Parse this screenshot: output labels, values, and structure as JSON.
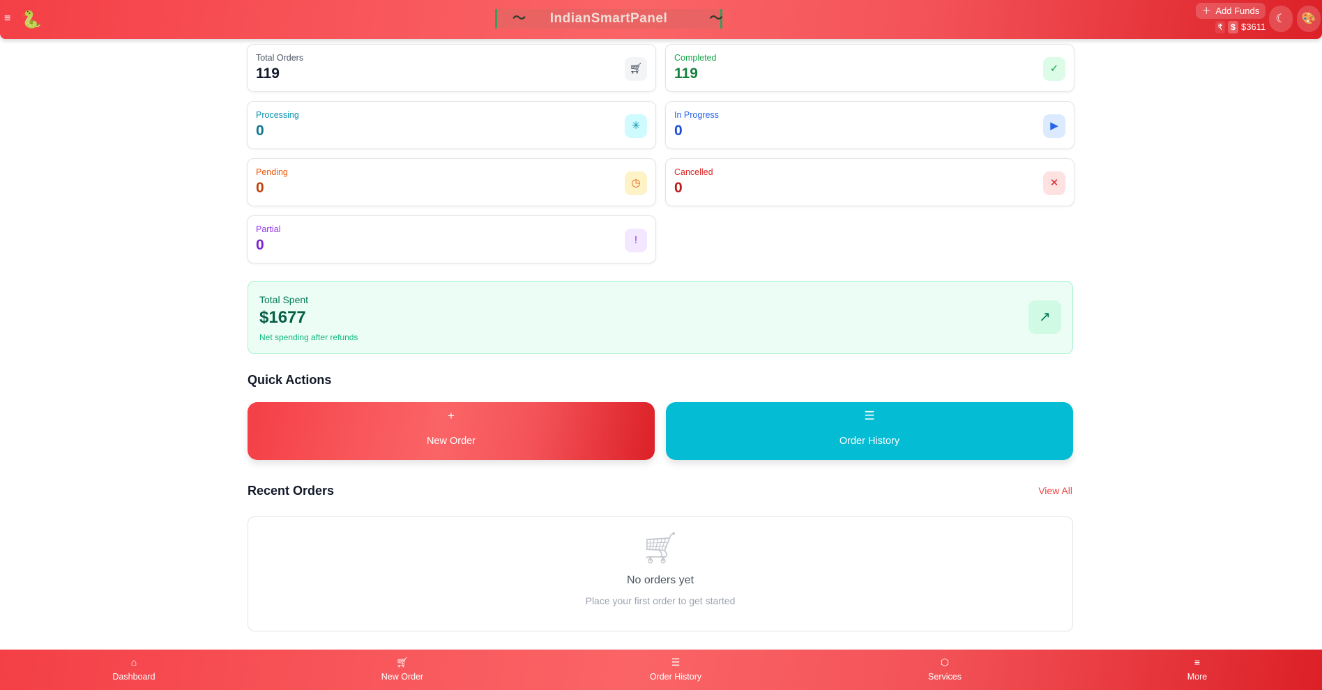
{
  "header": {
    "brand": "IndianSmartPanel",
    "add_funds": "Add Funds",
    "currency_inr": "₹",
    "currency_usd": "$",
    "balance": "$3611"
  },
  "stats": [
    {
      "label": "Total Orders",
      "value": "119",
      "icon": "cart-icon",
      "color": "#374151",
      "label_color": "#4b5563",
      "value_color": "#111827",
      "icon_bg": "#f3f4f6"
    },
    {
      "label": "Completed",
      "value": "119",
      "icon": "check-circle-icon",
      "color": "#16a34a",
      "label_color": "#16a34a",
      "value_color": "#15803d",
      "icon_bg": "#dcfce7"
    },
    {
      "label": "Processing",
      "value": "0",
      "icon": "loader-icon",
      "color": "#0891b2",
      "label_color": "#0891b2",
      "value_color": "#0e7490",
      "icon_bg": "#cffafe"
    },
    {
      "label": "In Progress",
      "value": "0",
      "icon": "play-circle-icon",
      "color": "#2563eb",
      "label_color": "#2563eb",
      "value_color": "#1d4ed8",
      "icon_bg": "#dbeafe"
    },
    {
      "label": "Pending",
      "value": "0",
      "icon": "clock-icon",
      "color": "#ea580c",
      "label_color": "#ea580c",
      "value_color": "#c2410c",
      "icon_bg": "#fef3c7"
    },
    {
      "label": "Cancelled",
      "value": "0",
      "icon": "x-circle-icon",
      "color": "#dc2626",
      "label_color": "#dc2626",
      "value_color": "#b91c1c",
      "icon_bg": "#fee2e2"
    },
    {
      "label": "Partial",
      "value": "0",
      "icon": "alert-circle-icon",
      "color": "#9333ea",
      "label_color": "#9333ea",
      "value_color": "#7e22ce",
      "icon_bg": "#f3e8ff"
    }
  ],
  "spent": {
    "label": "Total Spent",
    "value": "$1677",
    "note": "Net spending after refunds"
  },
  "quick_actions": {
    "title": "Quick Actions",
    "new_order": "New Order",
    "order_history": "Order History"
  },
  "recent": {
    "title": "Recent Orders",
    "view_all": "View All",
    "empty_title": "No orders yet",
    "empty_sub": "Place your first order to get started"
  },
  "bottom_nav": [
    "Dashboard",
    "New Order",
    "Order History",
    "Services",
    "More"
  ]
}
